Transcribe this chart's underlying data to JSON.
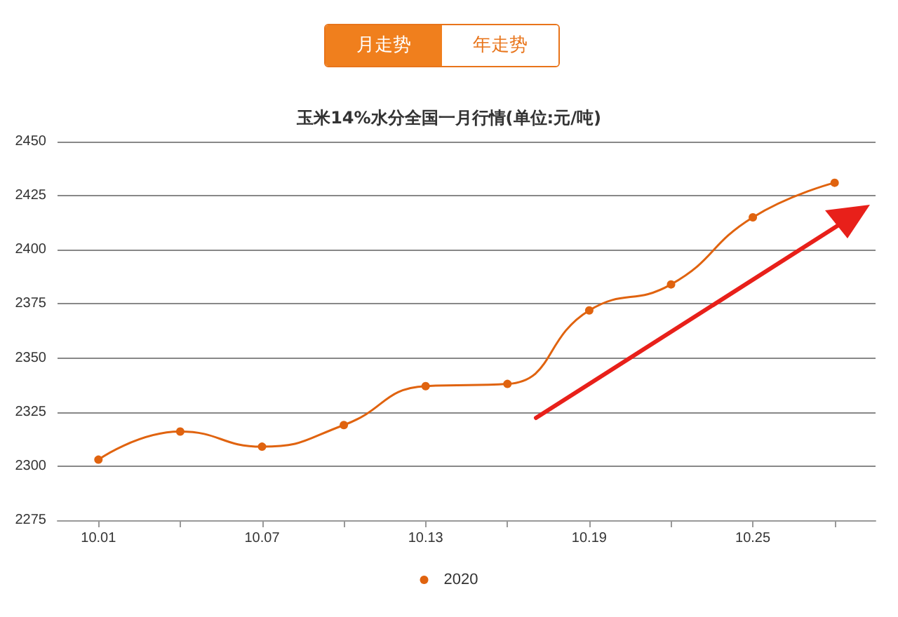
{
  "chart_data": {
    "type": "line",
    "title": "玉米14%水分全国一月行情(单位:元/吨)",
    "annotations": [
      "月走势",
      "年走势"
    ],
    "categories": [
      "10.01",
      null,
      "10.07",
      null,
      "10.13",
      null,
      "10.19",
      null,
      "10.25",
      null
    ],
    "series": [
      {
        "name": "2020",
        "color": "#e0630f",
        "values": [
          2303,
          2316,
          2309,
          2319,
          2337,
          2338,
          2372,
          2384,
          2415,
          2431
        ]
      }
    ],
    "ylim": [
      2275,
      2450
    ],
    "yticks": [
      2275,
      2300,
      2325,
      2350,
      2375,
      2400,
      2425,
      2450
    ],
    "grid": "y",
    "legend": "bottom",
    "marker": "circle",
    "line_style": "solid"
  }
}
